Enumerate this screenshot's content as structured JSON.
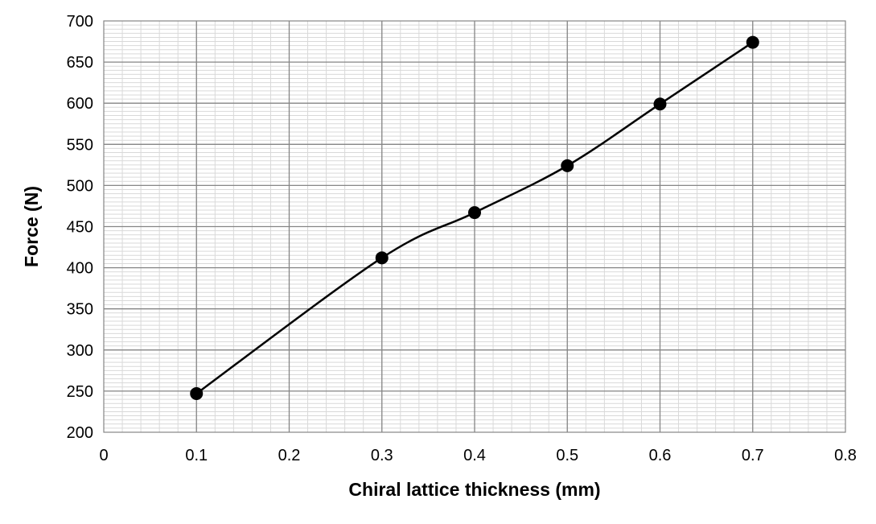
{
  "chart_data": {
    "type": "line",
    "title": "",
    "xlabel": "Chiral lattice thickness (mm)",
    "ylabel": "Force (N)",
    "xlim": [
      0,
      0.8
    ],
    "ylim": [
      200,
      700
    ],
    "x_ticks": [
      "0",
      "0.1",
      "0.2",
      "0.3",
      "0.4",
      "0.5",
      "0.6",
      "0.7",
      "0.8"
    ],
    "y_ticks": [
      "200",
      "250",
      "300",
      "350",
      "400",
      "450",
      "500",
      "550",
      "600",
      "650",
      "700"
    ],
    "x_major_step": 0.1,
    "x_minor_step": 0.02,
    "y_major_step": 50,
    "y_minor_step": 5,
    "grid": true,
    "legend": "none",
    "series": [
      {
        "x": [
          0.1,
          0.3,
          0.4,
          0.5,
          0.6,
          0.7
        ],
        "y": [
          247,
          412,
          467,
          524,
          599,
          674
        ],
        "color": "#000000",
        "marker": "circle",
        "smooth": true
      }
    ]
  }
}
